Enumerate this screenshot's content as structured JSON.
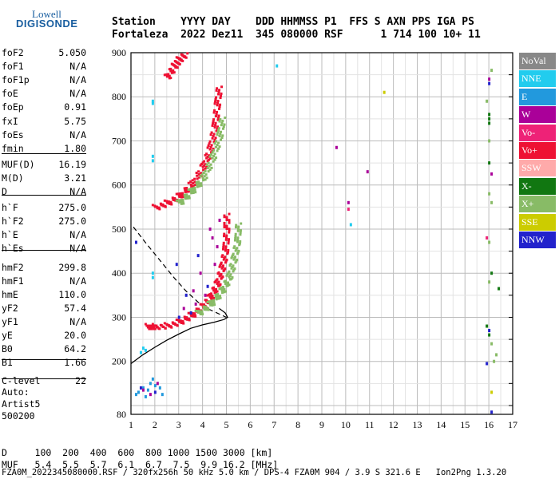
{
  "logo": {
    "line1": "Lowell",
    "line2": "DIGISONDE"
  },
  "header": {
    "line1": "Station    YYYY DAY    DDD HHMMSS P1  FFS S AXN PPS IGA PS",
    "line2": "Fortaleza  2022 Dez11  345 080000 RSF      1 714 100 10+ 11"
  },
  "params": [
    {
      "k": "foF2",
      "v": "5.050"
    },
    {
      "k": "foF1",
      "v": "N/A"
    },
    {
      "k": "foF1p",
      "v": "N/A"
    },
    {
      "k": "foE",
      "v": "N/A"
    },
    {
      "k": "foEp",
      "v": "0.91"
    },
    {
      "k": "fxI",
      "v": "5.75"
    },
    {
      "k": "foEs",
      "v": "N/A"
    },
    {
      "k": "fmin",
      "v": "1.80"
    },
    {
      "k": "MUF(D)",
      "v": "16.19"
    },
    {
      "k": "M(D)",
      "v": "3.21"
    },
    {
      "k": "D",
      "v": "N/A"
    },
    {
      "k": "h`F",
      "v": "275.0"
    },
    {
      "k": "h`F2",
      "v": "275.0"
    },
    {
      "k": "h`E",
      "v": "N/A"
    },
    {
      "k": "h`Es",
      "v": "N/A"
    },
    {
      "k": "hmF2",
      "v": "299.8"
    },
    {
      "k": "hmF1",
      "v": "N/A"
    },
    {
      "k": "hmE",
      "v": "110.0"
    },
    {
      "k": "yF2",
      "v": "57.4"
    },
    {
      "k": "yF1",
      "v": "N/A"
    },
    {
      "k": "yE",
      "v": "20.0"
    },
    {
      "k": "B0",
      "v": "64.2"
    },
    {
      "k": "B1",
      "v": "1.66"
    },
    {
      "k": "C-level",
      "v": "22"
    }
  ],
  "auto": {
    "l1": "Auto:",
    "l2": "Artist5",
    "l3": "500200"
  },
  "legend": [
    {
      "label": "NoVal",
      "color": "#888888"
    },
    {
      "label": "NNE",
      "color": "#22ccee"
    },
    {
      "label": "E",
      "color": "#2299dd"
    },
    {
      "label": "W",
      "color": "#aa0099"
    },
    {
      "label": "Vo-",
      "color": "#ee2277"
    },
    {
      "label": "Vo+",
      "color": "#ee1133"
    },
    {
      "label": "SSW",
      "color": "#ffaaaa"
    },
    {
      "label": "X-",
      "color": "#117711"
    },
    {
      "label": "X+",
      "color": "#88bb66"
    },
    {
      "label": "SSE",
      "color": "#cccc00"
    },
    {
      "label": "NNW",
      "color": "#2222cc"
    }
  ],
  "footer": {
    "row1": "D     100  200  400  600  800 1000 1500 3000 [km]",
    "row2": "MUF   5.4  5.5  5.7  6.1  6.7  7.5  9.9 16.2 [MHz]",
    "src": "FZA0M_2022345080000.RSF / 320fx256h 50 kHz 5.0 km / DPS-4 FZA0M 904 / 3.9 S 321.6 E   Ion2Png 1.3.20"
  },
  "chart_data": {
    "type": "scatter",
    "xlim": [
      1,
      17
    ],
    "ylim": [
      80,
      900
    ],
    "xticks": [
      "1",
      "2",
      "3",
      "4",
      "5",
      "6",
      "7",
      "8",
      "9",
      "10",
      "11",
      "12",
      "13",
      "14",
      "15",
      "16",
      "17"
    ],
    "yticks": [
      "80",
      "200",
      "300",
      "400",
      "500",
      "600",
      "700",
      "800",
      "900"
    ],
    "grid": true,
    "profile_solid": [
      [
        1.0,
        195
      ],
      [
        1.5,
        215
      ],
      [
        2.0,
        232
      ],
      [
        2.5,
        248
      ],
      [
        3.0,
        262
      ],
      [
        3.5,
        275
      ],
      [
        4.0,
        283
      ],
      [
        4.5,
        289
      ],
      [
        4.9,
        295
      ],
      [
        5.05,
        300
      ],
      [
        4.95,
        310
      ],
      [
        4.7,
        320
      ]
    ],
    "profile_dashed": [
      [
        1.1,
        505
      ],
      [
        1.6,
        470
      ],
      [
        2.2,
        430
      ],
      [
        2.8,
        390
      ],
      [
        3.3,
        360
      ],
      [
        3.8,
        335
      ],
      [
        4.2,
        320
      ],
      [
        4.6,
        310
      ],
      [
        5.0,
        300
      ]
    ],
    "traces": [
      {
        "name": "o-F2",
        "color": "#ee1133",
        "pts": [
          [
            1.7,
            280
          ],
          [
            2.0,
            280
          ],
          [
            2.5,
            282
          ],
          [
            3.0,
            290
          ],
          [
            3.5,
            305
          ],
          [
            4.0,
            325
          ],
          [
            4.3,
            345
          ],
          [
            4.6,
            375
          ],
          [
            4.8,
            410
          ],
          [
            4.95,
            450
          ],
          [
            5.0,
            500
          ],
          [
            5.0,
            540
          ]
        ]
      },
      {
        "name": "x-F2",
        "color": "#88bb66",
        "pts": [
          [
            3.8,
            310
          ],
          [
            4.3,
            330
          ],
          [
            4.8,
            360
          ],
          [
            5.1,
            390
          ],
          [
            5.3,
            430
          ],
          [
            5.45,
            470
          ],
          [
            5.5,
            520
          ]
        ]
      },
      {
        "name": "o-2F2",
        "color": "#ee1133",
        "pts": [
          [
            2.0,
            550
          ],
          [
            2.5,
            560
          ],
          [
            3.0,
            575
          ],
          [
            3.5,
            600
          ],
          [
            4.0,
            640
          ],
          [
            4.3,
            680
          ],
          [
            4.5,
            730
          ],
          [
            4.6,
            780
          ],
          [
            4.7,
            830
          ]
        ]
      },
      {
        "name": "x-2F2",
        "color": "#88bb66",
        "pts": [
          [
            3.0,
            560
          ],
          [
            3.5,
            585
          ],
          [
            4.0,
            615
          ],
          [
            4.4,
            660
          ],
          [
            4.7,
            710
          ],
          [
            4.85,
            760
          ]
        ]
      },
      {
        "name": "o-3F2",
        "color": "#ee1133",
        "pts": [
          [
            2.5,
            845
          ],
          [
            2.8,
            870
          ],
          [
            3.0,
            885
          ],
          [
            3.3,
            900
          ]
        ]
      }
    ],
    "scatter_groups": [
      {
        "color": "#2299dd",
        "pts": [
          [
            1.3,
            130
          ],
          [
            1.5,
            140
          ],
          [
            1.7,
            135
          ],
          [
            1.8,
            150
          ],
          [
            2.0,
            145
          ],
          [
            2.2,
            140
          ],
          [
            2.3,
            125
          ],
          [
            1.6,
            120
          ],
          [
            1.2,
            125
          ],
          [
            1.9,
            160
          ]
        ]
      },
      {
        "color": "#aa0099",
        "pts": [
          [
            1.5,
            135
          ],
          [
            1.8,
            125
          ],
          [
            2.1,
            150
          ]
        ]
      },
      {
        "color": "#2222cc",
        "pts": [
          [
            1.4,
            140
          ],
          [
            2.0,
            130
          ],
          [
            3.0,
            300
          ],
          [
            3.5,
            310
          ],
          [
            2.9,
            420
          ],
          [
            3.8,
            440
          ],
          [
            4.2,
            370
          ],
          [
            3.3,
            350
          ],
          [
            1.2,
            470
          ]
        ]
      },
      {
        "color": "#aa0099",
        "pts": [
          [
            3.2,
            320
          ],
          [
            3.7,
            330
          ],
          [
            4.1,
            350
          ],
          [
            4.4,
            480
          ],
          [
            4.6,
            460
          ],
          [
            3.9,
            400
          ],
          [
            4.5,
            420
          ],
          [
            4.3,
            500
          ],
          [
            4.7,
            520
          ],
          [
            3.6,
            360
          ]
        ]
      },
      {
        "color": "#22ccee",
        "pts": [
          [
            1.5,
            230
          ],
          [
            1.6,
            225
          ],
          [
            1.4,
            220
          ],
          [
            1.9,
            390
          ],
          [
            1.9,
            400
          ],
          [
            1.9,
            655
          ],
          [
            1.9,
            665
          ],
          [
            1.9,
            785
          ],
          [
            1.9,
            790
          ],
          [
            7.1,
            870
          ],
          [
            10.2,
            510
          ]
        ]
      },
      {
        "color": "#aa0099",
        "pts": [
          [
            9.6,
            685
          ],
          [
            10.9,
            630
          ],
          [
            10.1,
            560
          ],
          [
            16.0,
            840
          ],
          [
            16.1,
            625
          ]
        ]
      },
      {
        "color": "#ee2277",
        "pts": [
          [
            10.1,
            545
          ],
          [
            15.9,
            480
          ]
        ]
      },
      {
        "color": "#cccc00",
        "pts": [
          [
            11.6,
            810
          ],
          [
            16.1,
            130
          ]
        ]
      },
      {
        "color": "#117711",
        "pts": [
          [
            16.0,
            760
          ],
          [
            16.0,
            750
          ],
          [
            16.0,
            740
          ],
          [
            15.9,
            280
          ],
          [
            16.0,
            260
          ],
          [
            16.1,
            400
          ],
          [
            16.4,
            365
          ],
          [
            16.0,
            650
          ]
        ]
      },
      {
        "color": "#88bb66",
        "pts": [
          [
            16.0,
            700
          ],
          [
            15.9,
            790
          ],
          [
            16.1,
            860
          ],
          [
            16.0,
            580
          ],
          [
            16.1,
            560
          ],
          [
            16.0,
            470
          ],
          [
            16.1,
            240
          ],
          [
            16.2,
            200
          ],
          [
            16.3,
            215
          ],
          [
            16.0,
            380
          ]
        ]
      },
      {
        "color": "#2222cc",
        "pts": [
          [
            16.0,
            830
          ],
          [
            15.9,
            195
          ],
          [
            16.1,
            85
          ],
          [
            16.0,
            270
          ]
        ]
      }
    ]
  }
}
